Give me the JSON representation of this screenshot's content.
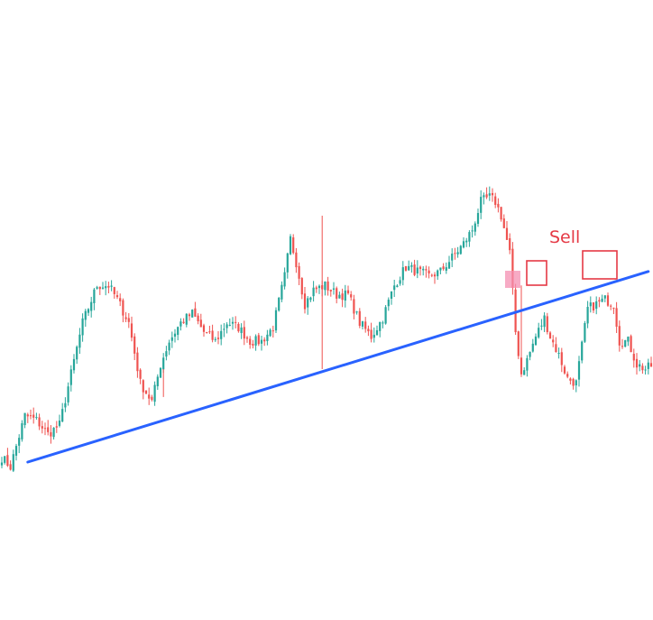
{
  "chart_data": {
    "type": "candlestick",
    "title": "",
    "xlabel": "",
    "ylabel": "",
    "grid": false,
    "legend": "none",
    "colors": {
      "up": "#26a69a",
      "down": "#ef5350",
      "trendline": "#2962ff",
      "annotation": "#e53945",
      "breakout_zone": "#f48fb1"
    },
    "ylim": [
      0,
      100
    ],
    "anchors": [
      [
        0,
        21
      ],
      [
        3,
        19
      ],
      [
        8,
        30
      ],
      [
        12,
        29
      ],
      [
        16,
        26
      ],
      [
        20,
        28
      ],
      [
        24,
        39
      ],
      [
        28,
        50
      ],
      [
        33,
        58
      ],
      [
        37,
        58
      ],
      [
        40,
        55
      ],
      [
        44,
        50
      ],
      [
        48,
        37
      ],
      [
        52,
        33
      ],
      [
        55,
        41
      ],
      [
        58,
        46
      ],
      [
        62,
        50
      ],
      [
        66,
        52
      ],
      [
        70,
        48
      ],
      [
        74,
        46
      ],
      [
        78,
        50
      ],
      [
        82,
        49
      ],
      [
        86,
        46
      ],
      [
        90,
        46
      ],
      [
        94,
        49
      ],
      [
        98,
        60
      ],
      [
        100,
        68
      ],
      [
        102,
        63
      ],
      [
        105,
        54
      ],
      [
        108,
        57
      ],
      [
        112,
        58
      ],
      [
        116,
        56
      ],
      [
        120,
        56
      ],
      [
        124,
        50
      ],
      [
        128,
        47
      ],
      [
        132,
        51
      ],
      [
        136,
        58
      ],
      [
        140,
        62
      ],
      [
        144,
        61
      ],
      [
        148,
        60
      ],
      [
        152,
        61
      ],
      [
        156,
        64
      ],
      [
        160,
        67
      ],
      [
        163,
        70
      ],
      [
        166,
        76
      ],
      [
        169,
        77
      ],
      [
        171,
        76
      ],
      [
        173,
        73
      ],
      [
        176,
        65
      ],
      [
        178,
        48
      ],
      [
        180,
        39
      ],
      [
        182,
        42
      ],
      [
        185,
        47
      ],
      [
        188,
        51
      ],
      [
        190,
        47
      ],
      [
        193,
        43
      ],
      [
        196,
        38
      ],
      [
        199,
        37
      ],
      [
        201,
        45
      ],
      [
        203,
        53
      ],
      [
        206,
        54
      ],
      [
        209,
        55
      ],
      [
        212,
        54
      ],
      [
        214,
        46
      ],
      [
        217,
        46
      ],
      [
        220,
        41
      ],
      [
        223,
        40
      ],
      [
        226,
        41
      ]
    ],
    "n_candles": 227,
    "trendline": {
      "start": {
        "index": 9,
        "value": 20
      },
      "end": {
        "index": 224,
        "value": 61
      }
    },
    "annotations": [
      {
        "label": "Sell"
      }
    ]
  }
}
